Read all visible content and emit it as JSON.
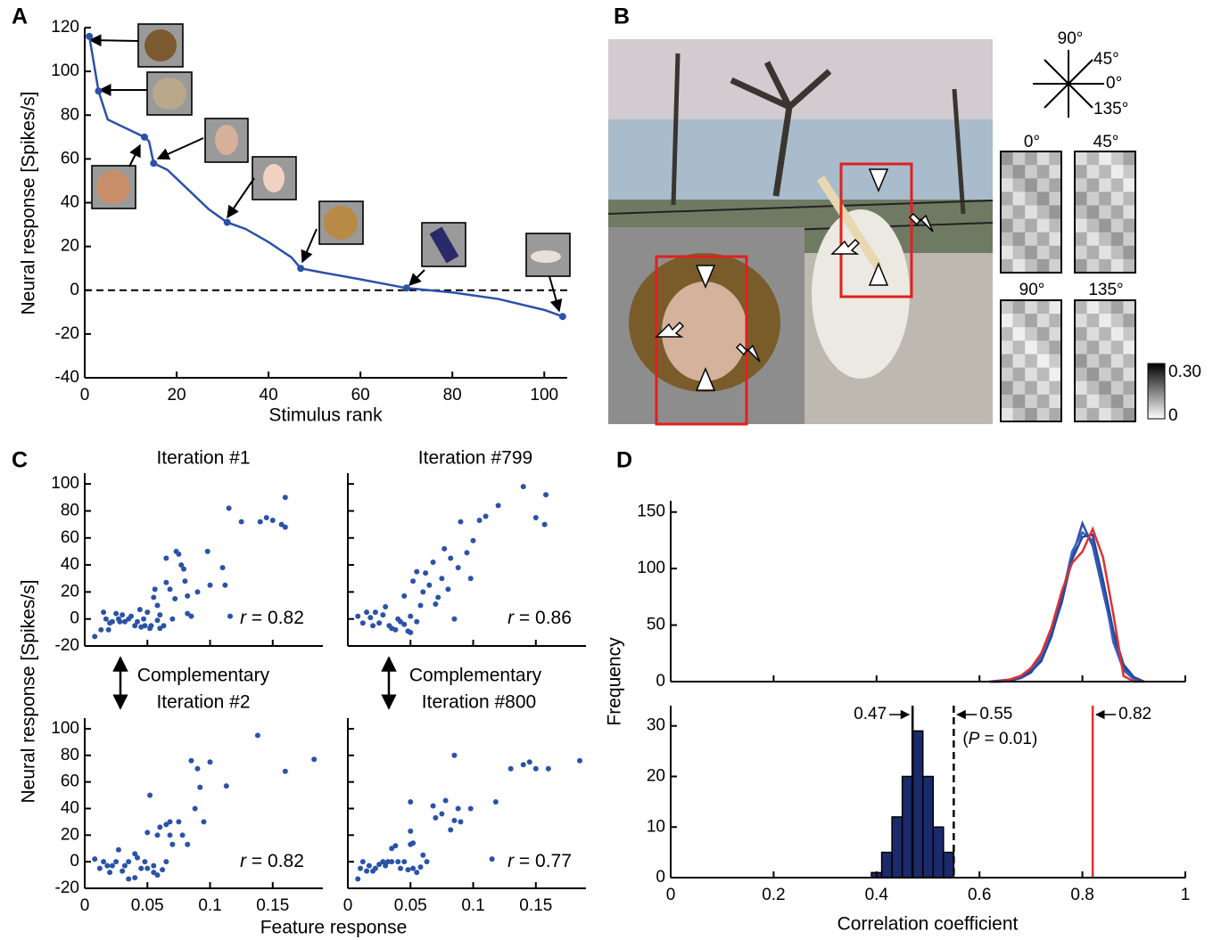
{
  "chart_data": [
    {
      "type": "line",
      "panel": "A",
      "xlabel": "Stimulus rank",
      "ylabel": "Neural response [Spikes/s]",
      "xlim": [
        0,
        105
      ],
      "ylim": [
        -40,
        120
      ],
      "xticks": [
        0,
        20,
        40,
        60,
        80,
        100
      ],
      "yticks": [
        -40,
        -20,
        0,
        20,
        40,
        60,
        80,
        100,
        120
      ],
      "hline": 0,
      "x": [
        1,
        3,
        5,
        10,
        13,
        14,
        15,
        18,
        22,
        27,
        31,
        35,
        40,
        45,
        47,
        52,
        60,
        70,
        80,
        90,
        100,
        104
      ],
      "series": [
        {
          "color": "#2a52a8",
          "values": [
            116,
            91,
            78,
            73,
            70,
            68,
            58,
            55,
            47,
            37,
            31,
            28,
            22,
            15,
            10,
            8,
            5,
            1,
            -1,
            -4,
            -9,
            -12
          ]
        }
      ],
      "highlight": {
        "x": [
          1,
          3,
          13,
          15,
          31,
          47,
          70,
          104
        ],
        "values": [
          116,
          91,
          70,
          58,
          31,
          10,
          1,
          -12
        ]
      }
    },
    {
      "type": "scatter",
      "panel": "C",
      "title": "Iteration #1",
      "ylabel": "Neural response [Spikes/s]",
      "xlim": [
        0,
        0.19
      ],
      "ylim": [
        -20,
        108
      ],
      "xticks": [
        0,
        0.05,
        0.1,
        0.15
      ],
      "yticks": [
        -20,
        0,
        20,
        40,
        60,
        80,
        100
      ],
      "xtick_labels": false,
      "ytick_labels": true,
      "color": "#2a52a8",
      "x": [
        0.008,
        0.013,
        0.015,
        0.017,
        0.019,
        0.02,
        0.022,
        0.025,
        0.027,
        0.028,
        0.03,
        0.032,
        0.035,
        0.037,
        0.04,
        0.042,
        0.044,
        0.045,
        0.047,
        0.048,
        0.05,
        0.052,
        0.053,
        0.055,
        0.056,
        0.058,
        0.058,
        0.06,
        0.06,
        0.063,
        0.065,
        0.065,
        0.068,
        0.07,
        0.072,
        0.073,
        0.075,
        0.077,
        0.079,
        0.08,
        0.082,
        0.082,
        0.085,
        0.09,
        0.098,
        0.1,
        0.11,
        0.112,
        0.115,
        0.116,
        0.125,
        0.14,
        0.145,
        0.15,
        0.157,
        0.16,
        0.16
      ],
      "values": [
        -13,
        -8,
        5,
        0,
        -8,
        -3,
        -2,
        4,
        0,
        -2,
        3,
        -2,
        0,
        2,
        -5,
        -2,
        7,
        -6,
        0,
        -5,
        5,
        -7,
        -5,
        16,
        22,
        10,
        -1,
        3,
        -7,
        -5,
        27,
        45,
        22,
        0,
        15,
        50,
        48,
        40,
        37,
        28,
        17,
        4,
        2,
        20,
        50,
        25,
        38,
        25,
        82,
        2,
        72,
        72,
        75,
        73,
        70,
        68,
        90
      ],
      "annotation": {
        "symbol": "r",
        "text": " = 0.82"
      }
    },
    {
      "type": "scatter",
      "title": "Iteration #799",
      "xlim": [
        0,
        0.19
      ],
      "ylim": [
        -20,
        108
      ],
      "xticks": [
        0,
        0.05,
        0.1,
        0.15
      ],
      "yticks": [
        -20,
        0,
        20,
        40,
        60,
        80,
        100
      ],
      "xtick_labels": false,
      "ytick_labels": false,
      "color": "#2a52a8",
      "x": [
        0.008,
        0.012,
        0.015,
        0.018,
        0.02,
        0.022,
        0.025,
        0.028,
        0.03,
        0.033,
        0.035,
        0.038,
        0.04,
        0.042,
        0.045,
        0.045,
        0.048,
        0.05,
        0.05,
        0.052,
        0.055,
        0.055,
        0.058,
        0.06,
        0.062,
        0.065,
        0.068,
        0.07,
        0.072,
        0.075,
        0.077,
        0.08,
        0.082,
        0.085,
        0.088,
        0.09,
        0.095,
        0.098,
        0.1,
        0.105,
        0.11,
        0.12,
        0.14,
        0.15,
        0.157,
        0.158
      ],
      "values": [
        2,
        -3,
        5,
        1,
        -5,
        5,
        -3,
        3,
        9,
        -5,
        -7,
        -8,
        0,
        -2,
        -4,
        17,
        -9,
        -10,
        2,
        28,
        35,
        -2,
        10,
        20,
        34,
        25,
        42,
        11,
        16,
        30,
        52,
        22,
        45,
        0,
        38,
        72,
        49,
        30,
        58,
        73,
        76,
        84,
        98,
        75,
        70,
        92
      ],
      "annotation": {
        "symbol": "r",
        "text": " = 0.86"
      }
    },
    {
      "type": "scatter",
      "title": "Iteration #2",
      "note": "Complementary",
      "xlabel": "Feature response",
      "xlim": [
        0,
        0.19
      ],
      "ylim": [
        -20,
        108
      ],
      "xticks": [
        0,
        0.05,
        0.1,
        0.15
      ],
      "yticks": [
        -20,
        0,
        20,
        40,
        60,
        80,
        100
      ],
      "xtick_labels": true,
      "ytick_labels": true,
      "color": "#2a52a8",
      "x": [
        0.008,
        0.012,
        0.015,
        0.018,
        0.02,
        0.022,
        0.025,
        0.027,
        0.03,
        0.032,
        0.035,
        0.035,
        0.04,
        0.04,
        0.042,
        0.045,
        0.048,
        0.05,
        0.05,
        0.052,
        0.055,
        0.055,
        0.058,
        0.058,
        0.06,
        0.062,
        0.065,
        0.065,
        0.068,
        0.068,
        0.07,
        0.075,
        0.078,
        0.082,
        0.085,
        0.088,
        0.09,
        0.092,
        0.095,
        0.1,
        0.113,
        0.138,
        0.16,
        0.183
      ],
      "values": [
        2,
        -5,
        0,
        -3,
        -8,
        -3,
        0,
        9,
        -7,
        -3,
        -13,
        0,
        6,
        -12,
        3,
        -5,
        0,
        22,
        -5,
        50,
        -8,
        -3,
        -10,
        20,
        26,
        -6,
        0,
        28,
        30,
        20,
        13,
        30,
        20,
        13,
        76,
        40,
        70,
        56,
        30,
        75,
        57,
        95,
        68,
        77
      ],
      "annotation": {
        "symbol": "r",
        "text": " = 0.82"
      }
    },
    {
      "type": "scatter",
      "title": "Iteration #800",
      "note": "Complementary",
      "xlim": [
        0,
        0.19
      ],
      "ylim": [
        -20,
        108
      ],
      "xticks": [
        0,
        0.05,
        0.1,
        0.15
      ],
      "yticks": [
        -20,
        0,
        20,
        40,
        60,
        80,
        100
      ],
      "xtick_labels": true,
      "ytick_labels": false,
      "color": "#2a52a8",
      "x": [
        0.008,
        0.01,
        0.012,
        0.015,
        0.017,
        0.02,
        0.022,
        0.025,
        0.028,
        0.03,
        0.032,
        0.035,
        0.035,
        0.038,
        0.04,
        0.042,
        0.045,
        0.048,
        0.05,
        0.05,
        0.052,
        0.052,
        0.055,
        0.058,
        0.06,
        0.063,
        0.05,
        0.068,
        0.07,
        0.075,
        0.078,
        0.082,
        0.085,
        0.088,
        0.09,
        0.085,
        0.098,
        0.115,
        0.118,
        0.13,
        0.14,
        0.145,
        0.15,
        0.16,
        0.185
      ],
      "values": [
        -13,
        -5,
        0,
        -7,
        -3,
        -7,
        -5,
        -2,
        0,
        -3,
        0,
        0,
        10,
        12,
        0,
        -5,
        0,
        -6,
        13,
        23,
        14,
        -5,
        -8,
        -4,
        5,
        0,
        45,
        42,
        33,
        36,
        46,
        24,
        31,
        40,
        30,
        80,
        40,
        2,
        45,
        70,
        73,
        75,
        70,
        70,
        76
      ],
      "annotation": {
        "symbol": "r",
        "text": " = 0.77"
      }
    },
    {
      "type": "line",
      "panel": "D",
      "ylabel": "Frequency",
      "xlim": [
        0,
        1
      ],
      "ylim": [
        0,
        160
      ],
      "xticks": [
        0,
        0.2,
        0.4,
        0.6,
        0.8,
        1
      ],
      "yticks": [
        0,
        50,
        100,
        150
      ],
      "xtick_labels": false,
      "x": [
        0.62,
        0.64,
        0.66,
        0.68,
        0.7,
        0.72,
        0.74,
        0.76,
        0.78,
        0.8,
        0.82,
        0.84,
        0.86,
        0.88,
        0.9,
        0.92
      ],
      "series": [
        {
          "color": "#2a52a8",
          "values": [
            0,
            0,
            1,
            3,
            8,
            20,
            42,
            70,
            110,
            140,
            120,
            80,
            40,
            12,
            3,
            0
          ]
        },
        {
          "color": "#3a62b8",
          "values": [
            0,
            1,
            2,
            5,
            10,
            22,
            45,
            75,
            115,
            132,
            125,
            85,
            35,
            10,
            2,
            0
          ]
        },
        {
          "color": "#2448a0",
          "values": [
            0,
            0,
            1,
            4,
            9,
            18,
            40,
            72,
            108,
            128,
            130,
            90,
            45,
            15,
            4,
            0
          ]
        },
        {
          "color": "#e03030",
          "values": [
            0,
            0,
            2,
            5,
            12,
            25,
            48,
            80,
            105,
            115,
            135,
            110,
            60,
            5,
            0,
            0
          ]
        }
      ]
    },
    {
      "type": "histogram",
      "xlabel": "Correlation coefficient",
      "xlim": [
        0,
        1
      ],
      "ylim": [
        0,
        34
      ],
      "xticks": [
        0,
        0.2,
        0.4,
        0.6,
        0.8,
        1
      ],
      "yticks": [
        0,
        10,
        20,
        30
      ],
      "bins": [
        0.39,
        0.41,
        0.43,
        0.45,
        0.47,
        0.49,
        0.51,
        0.53,
        0.55
      ],
      "values": [
        1,
        5,
        12,
        20,
        29,
        20,
        10,
        5
      ],
      "color": "#1b2a6b",
      "vlines": [
        {
          "value": 0.47,
          "color": "#000000",
          "dash": false
        },
        {
          "value": 0.55,
          "color": "#000000",
          "dash": true,
          "note": [
            "(",
            "P",
            " = 0.01)"
          ]
        },
        {
          "value": 0.82,
          "color": "#e03030",
          "dash": false
        }
      ]
    }
  ],
  "figure_b": {
    "panel": "B",
    "directions": [
      "90°",
      "45°",
      "0°",
      "135°"
    ],
    "map_titles": [
      "0°",
      "45°",
      "90°",
      "135°"
    ],
    "colorbar_labels": [
      "0.30",
      "0"
    ]
  }
}
